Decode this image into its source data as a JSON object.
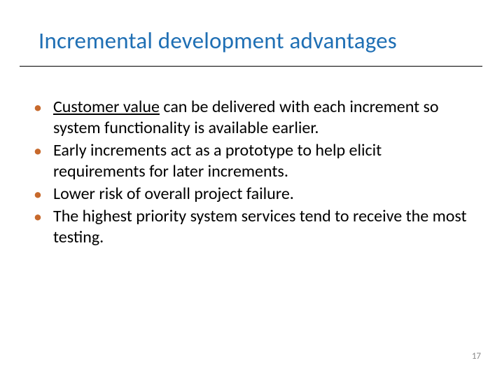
{
  "title": {
    "text": "Incremental development advantages",
    "color": "#1f6fb4",
    "fontsize": 33
  },
  "bullets": {
    "marker_color": "#c7692c",
    "text_color": "#000000",
    "fontsize": 24,
    "items": [
      {
        "underlined_lead": "Customer value",
        "rest": " can be delivered with each increment so system functionality is available earlier."
      },
      {
        "underlined_lead": "",
        "rest": "Early increments act as a prototype to help elicit requirements for later increments."
      },
      {
        "underlined_lead": "",
        "rest": "Lower risk of overall project failure."
      },
      {
        "underlined_lead": "",
        "rest": "The highest priority system services tend to receive the most testing."
      }
    ]
  },
  "page_number": {
    "value": "17",
    "color": "#8a8a8a",
    "fontsize": 13
  },
  "underline_color": "#000000",
  "background_color": "#ffffff"
}
